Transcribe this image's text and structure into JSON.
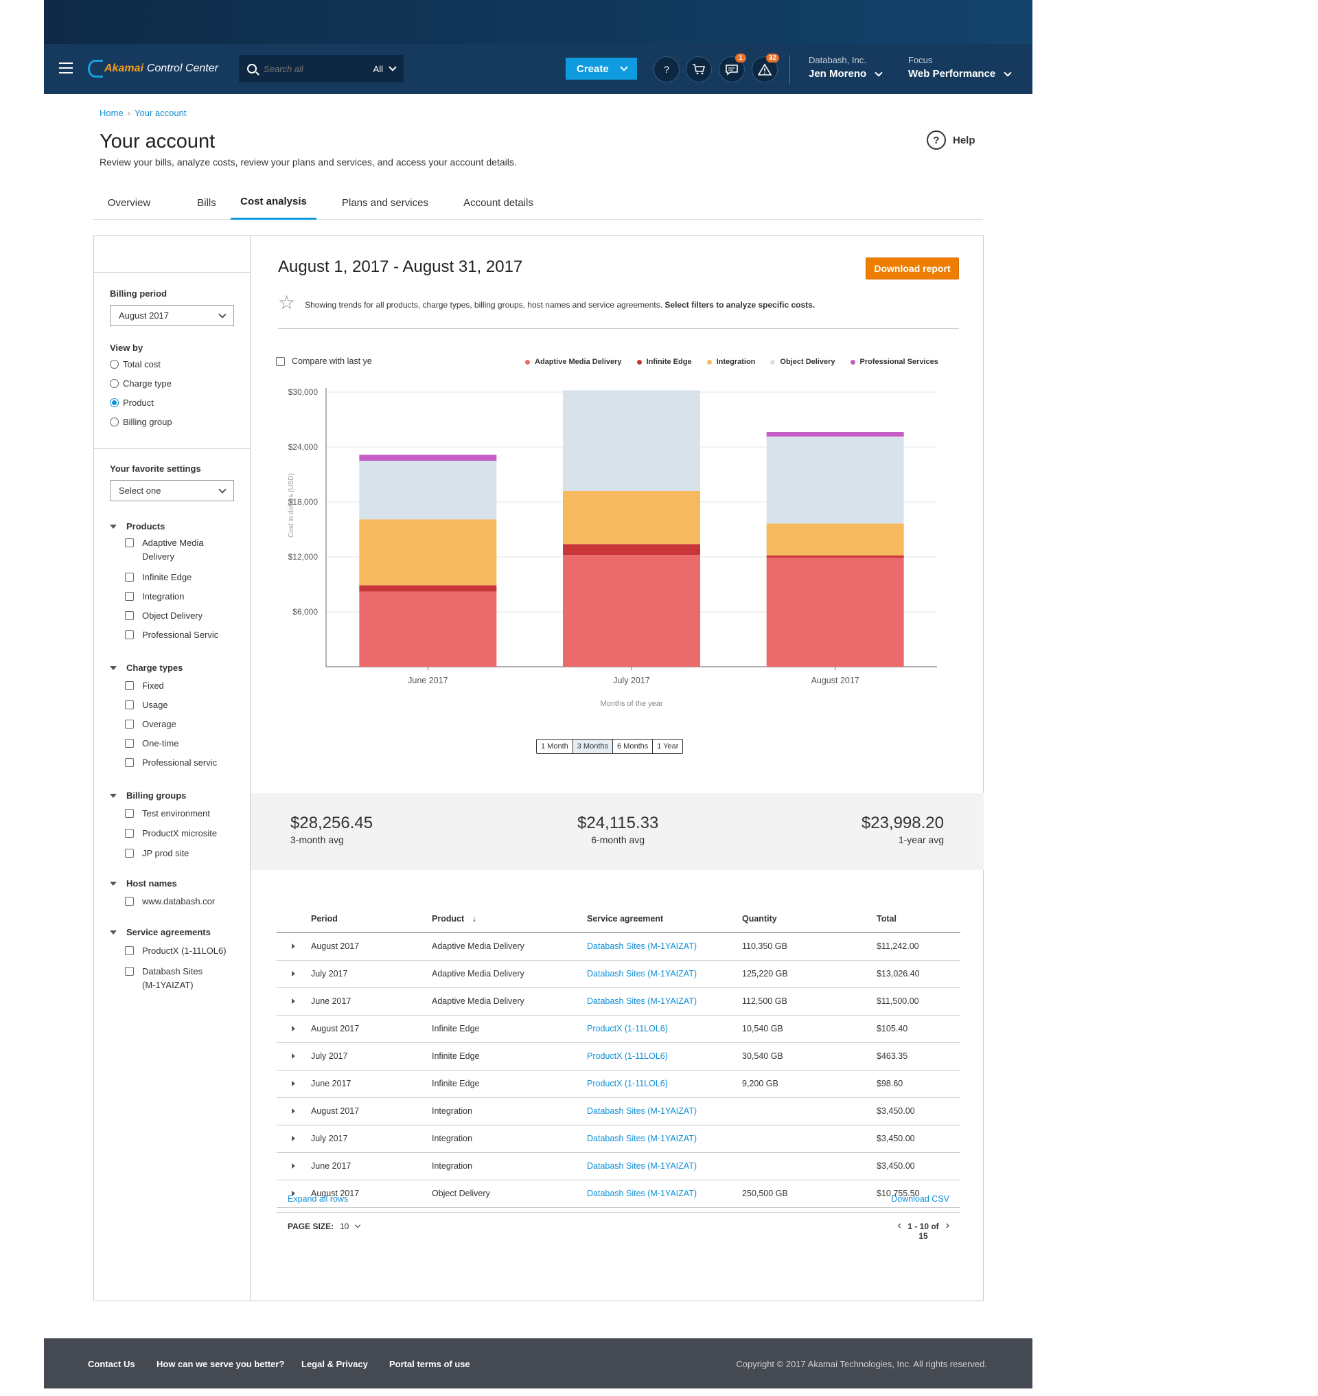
{
  "header": {
    "logo_brand": "Akamai",
    "logo_rest": "Control Center",
    "search_placeholder": "Search all",
    "search_scope": "All",
    "create_label": "Create",
    "messages_badge": "1",
    "alerts_badge": "32",
    "account_company": "Databash, Inc.",
    "account_user": "Jen Moreno",
    "focus_label": "Focus",
    "focus_value": "Web Performance"
  },
  "breadcrumb": {
    "home": "Home",
    "current": "Your account"
  },
  "page": {
    "title": "Your account",
    "subtitle": "Review your bills, analyze costs, review your plans and services, and access your account details.",
    "help": "Help"
  },
  "tabs": [
    "Overview",
    "Bills",
    "Cost analysis",
    "Plans and services",
    "Account details"
  ],
  "sidebar": {
    "billing_period_label": "Billing period",
    "billing_period_value": "August 2017",
    "view_by_label": "View by",
    "view_by": [
      "Total cost",
      "Charge type",
      "Product",
      "Billing group"
    ],
    "favorite_label": "Your favorite settings",
    "favorite_value": "Select one",
    "groups": {
      "products": {
        "label": "Products",
        "items": [
          "Adaptive Media Delivery",
          "Infinite Edge",
          "Integration",
          "Object Delivery",
          "Professional Servic"
        ]
      },
      "charge_types": {
        "label": "Charge types",
        "items": [
          "Fixed",
          "Usage",
          "Overage",
          "One-time",
          "Professional servic"
        ]
      },
      "billing_groups": {
        "label": "Billing groups",
        "items": [
          "Test environment",
          "ProductX microsite",
          "JP prod site"
        ]
      },
      "host_names": {
        "label": "Host names",
        "items": [
          "www.databash.cor"
        ]
      },
      "service_agreements": {
        "label": "Service agreements",
        "items": [
          "ProductX (1-11LOL6)",
          "Databash Sites (M-1YAIZAT)"
        ]
      }
    }
  },
  "main": {
    "date_range": "August 1, 2017 - August 31, 2017",
    "download_report": "Download report",
    "info_text": "Showing trends for all products, charge types, billing groups, host names and service agreements.",
    "info_bold": "Select filters to analyze specific costs.",
    "compare_label": "Compare with last ye",
    "range_buttons": [
      "1 Month",
      "3 Months",
      "6 Months",
      "1 Year"
    ],
    "range_selected": "3 Months"
  },
  "chart_data": {
    "type": "bar",
    "stacked": true,
    "categories": [
      "June 2017",
      "July 2017",
      "August 2017"
    ],
    "xlabel": "Months of the year",
    "ylabel": "Cost in dollars (USD)",
    "ylim": [
      0,
      30000
    ],
    "yticks": [
      6000,
      12000,
      18000,
      24000,
      30000
    ],
    "ytick_labels": [
      "$6,000",
      "$12,000",
      "$18,000",
      "$24,000",
      "$30,000"
    ],
    "grid": true,
    "legend_position": "top-right",
    "series": [
      {
        "name": "Adaptive Media Delivery",
        "color": "#eb6a6c",
        "values": [
          8200,
          12200,
          11900
        ]
      },
      {
        "name": "Infinite Edge",
        "color": "#c8363a",
        "values": [
          700,
          1200,
          250
        ]
      },
      {
        "name": "Integration",
        "color": "#f7b95d",
        "values": [
          7200,
          5800,
          3500
        ]
      },
      {
        "name": "Object Delivery",
        "color": "#d8e2eb",
        "values": [
          6400,
          11000,
          9500
        ]
      },
      {
        "name": "Professional Services",
        "color": "#c45ec4",
        "values": [
          650,
          0,
          500
        ]
      }
    ]
  },
  "averages": [
    {
      "value": "$28,256.45",
      "label": "3-month avg"
    },
    {
      "value": "$24,115.33",
      "label": "6-month avg"
    },
    {
      "value": "$23,998.20",
      "label": "1-year avg"
    }
  ],
  "table": {
    "headers": [
      "Period",
      "Product",
      "Service agreement",
      "Quantity",
      "Total"
    ],
    "rows": [
      [
        "August 2017",
        "Adaptive Media Delivery",
        "Databash Sites (M-1YAIZAT)",
        "110,350 GB",
        "$11,242.00"
      ],
      [
        "July 2017",
        "Adaptive Media Delivery",
        "Databash Sites (M-1YAIZAT)",
        "125,220 GB",
        "$13,026.40"
      ],
      [
        "June 2017",
        "Adaptive Media Delivery",
        "Databash Sites (M-1YAIZAT)",
        "112,500 GB",
        "$11,500.00"
      ],
      [
        "August 2017",
        "Infinite Edge",
        "ProductX (1-11LOL6)",
        "10,540 GB",
        "$105.40"
      ],
      [
        "July 2017",
        "Infinite Edge",
        "ProductX (1-11LOL6)",
        "30,540 GB",
        "$463.35"
      ],
      [
        "June 2017",
        "Infinite Edge",
        "ProductX (1-11LOL6)",
        "9,200 GB",
        "$98.60"
      ],
      [
        "August 2017",
        "Integration",
        "Databash Sites (M-1YAIZAT)",
        "",
        "$3,450.00"
      ],
      [
        "July 2017",
        "Integration",
        "Databash Sites (M-1YAIZAT)",
        "",
        "$3,450.00"
      ],
      [
        "June 2017",
        "Integration",
        "Databash Sites (M-1YAIZAT)",
        "",
        "$3,450.00"
      ],
      [
        "August 2017",
        "Object Delivery",
        "Databash Sites (M-1YAIZAT)",
        "250,500 GB",
        "$10,755.50"
      ]
    ],
    "expand_all": "Expand all rows",
    "download_csv": "Download CSV",
    "page_size_label": "PAGE SIZE:",
    "page_size": "10",
    "pagination": "1 - 10 of 15"
  },
  "footer": {
    "links": [
      "Contact Us",
      "How can we serve you better?",
      "Legal & Privacy",
      "Portal terms of use"
    ],
    "copyright": "Copyright © 2017  Akamai Technologies, Inc. All rights reserved."
  }
}
